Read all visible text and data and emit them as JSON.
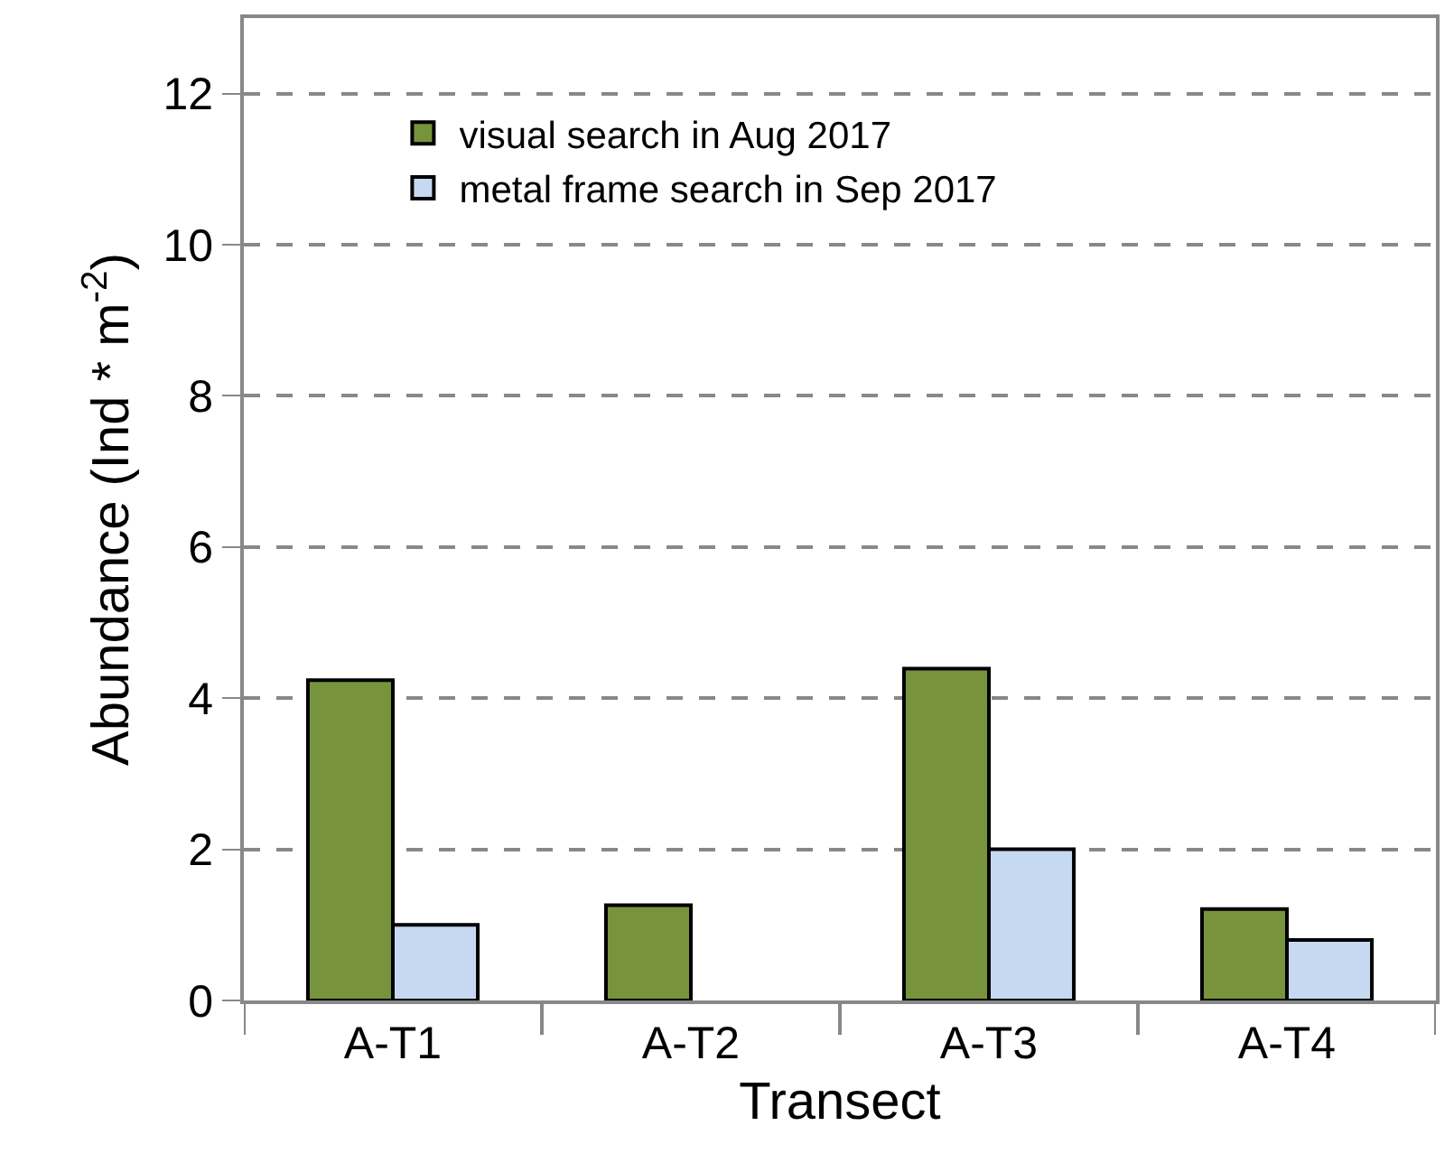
{
  "chart_data": {
    "type": "bar",
    "xlabel": "Transect",
    "ylabel": "Abundance (Ind * m$^{-2}$)",
    "categories": [
      "A-T1",
      "A-T2",
      "A-T3",
      "A-T4"
    ],
    "series": [
      {
        "name": "visual search in Aug 2017",
        "color": "#77933c",
        "values": [
          4.24,
          1.26,
          4.39,
          1.21
        ]
      },
      {
        "name": "metal frame search in Sep 2017",
        "color": "#c6d9f1",
        "values": [
          1.0,
          null,
          2.0,
          0.8
        ]
      }
    ],
    "ylim": [
      0,
      13
    ],
    "yticks": [
      0,
      2,
      4,
      6,
      8,
      10,
      12
    ],
    "grid": "y",
    "legend": "top left"
  }
}
